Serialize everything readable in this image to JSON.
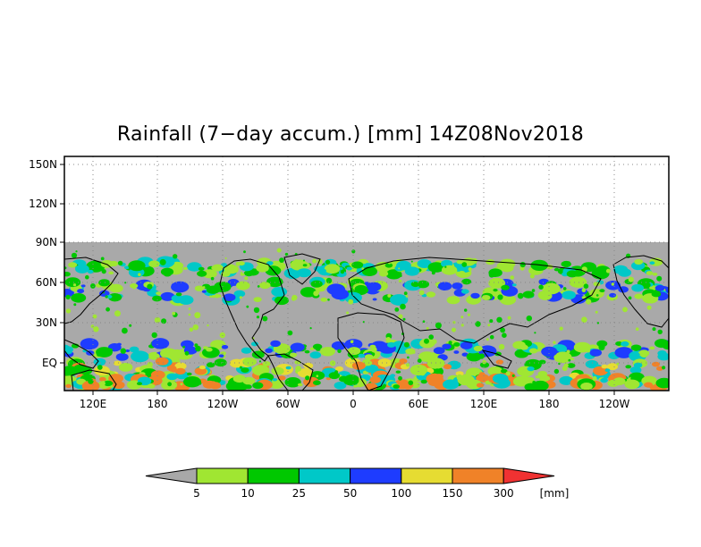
{
  "title": "Rainfall (7−day accum.) [mm] 14Z08Nov2018",
  "y_axis": {
    "ticks": [
      "150N",
      "120N",
      "90N",
      "60N",
      "30N",
      "EQ"
    ]
  },
  "x_axis": {
    "ticks": [
      "120E",
      "180",
      "120W",
      "60W",
      "0",
      "60E",
      "120E",
      "180",
      "120W"
    ]
  },
  "colorbar": {
    "unit": "[mm]",
    "levels": [
      "5",
      "10",
      "25",
      "50",
      "100",
      "150",
      "300"
    ],
    "colors": [
      "#a8a8a8",
      "#a0e632",
      "#00c800",
      "#00c8c8",
      "#1e3cff",
      "#e6dc32",
      "#f08228",
      "#f03232"
    ]
  },
  "map": {
    "background_color": "#a9a9a9",
    "land_outline_color": "#000000",
    "grid_style": "dotted"
  }
}
